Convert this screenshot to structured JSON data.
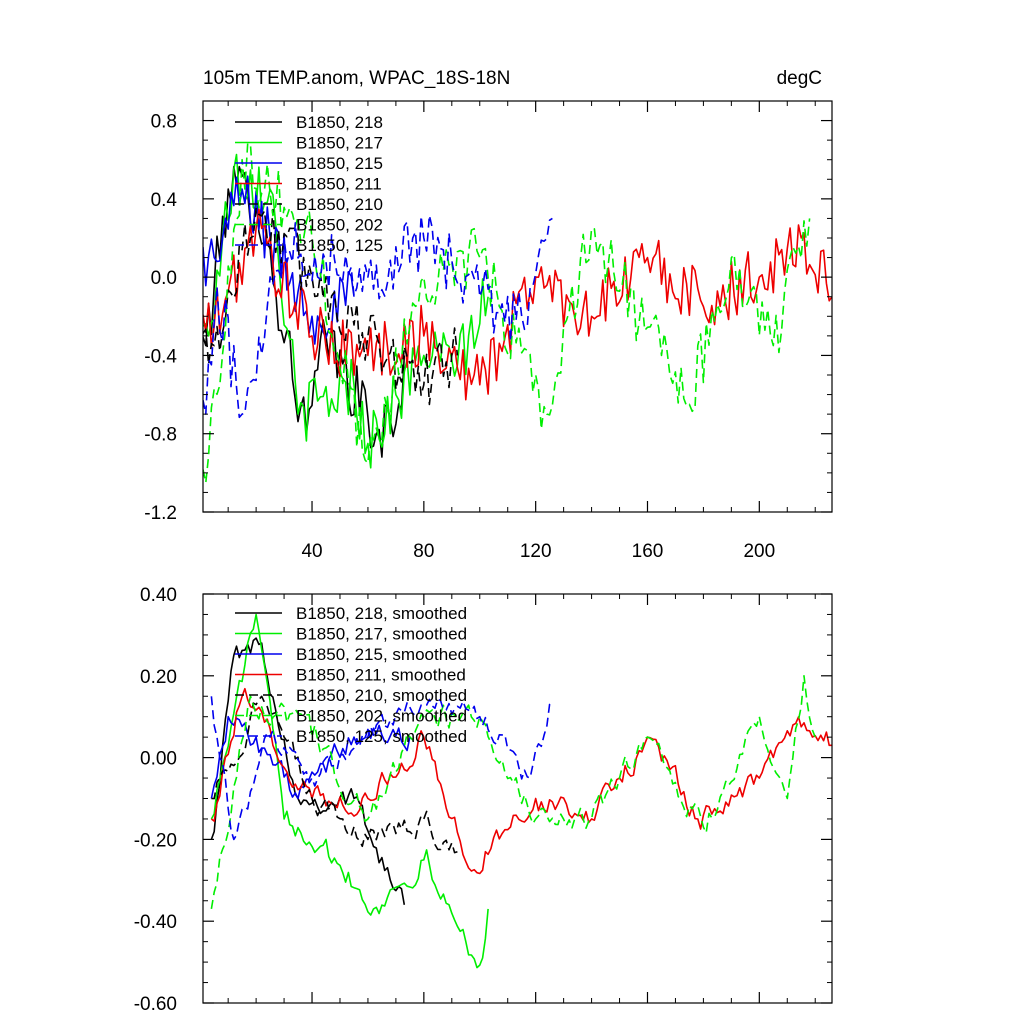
{
  "title_left": "105m TEMP.anom, WPAC_18S-18N",
  "title_right": "degC",
  "chart_data": [
    {
      "type": "line",
      "panel": "top",
      "xlim": [
        1,
        226
      ],
      "ylim": [
        -1.2,
        0.9
      ],
      "xticks": [
        40,
        80,
        120,
        160,
        200
      ],
      "yticks": [
        -1.2,
        -0.8,
        -0.4,
        0.0,
        0.4,
        0.8
      ],
      "ytick_labels": [
        "-1.2",
        "-0.8",
        "-0.4",
        "0.0",
        "0.4",
        "0.8"
      ],
      "legend_position": "top-left",
      "series": [
        {
          "name": "B1850, 218",
          "color": "#000000",
          "dash": "solid",
          "x_start": 1,
          "x_end": 73,
          "peaks": [
            [
              2,
              -0.35
            ],
            [
              10,
              0.45
            ],
            [
              20,
              0.4
            ],
            [
              38,
              -0.8
            ],
            [
              45,
              -0.3
            ],
            [
              63,
              -0.8
            ],
            [
              70,
              -0.75
            ],
            [
              73,
              -0.4
            ]
          ]
        },
        {
          "name": "B1850, 217",
          "color": "#00ee00",
          "dash": "solid",
          "x_start": 1,
          "x_end": 103,
          "peaks": [
            [
              3,
              -0.3
            ],
            [
              12,
              0.55
            ],
            [
              25,
              0.45
            ],
            [
              35,
              -0.7
            ],
            [
              55,
              -0.55
            ],
            [
              60,
              -0.85
            ],
            [
              80,
              -0.4
            ],
            [
              92,
              -0.45
            ],
            [
              103,
              -0.1
            ]
          ]
        },
        {
          "name": "B1850, 215",
          "color": "#0000ee",
          "dash": "solid",
          "x_start": 1,
          "x_end": 55,
          "peaks": [
            [
              5,
              0.1
            ],
            [
              15,
              0.45
            ],
            [
              25,
              0.2
            ],
            [
              40,
              -0.2
            ],
            [
              55,
              -0.1
            ]
          ]
        },
        {
          "name": "B1850, 211",
          "color": "#ee0000",
          "dash": "solid",
          "x_start": 1,
          "x_end": 226,
          "peaks": [
            [
              5,
              -0.25
            ],
            [
              20,
              0.25
            ],
            [
              40,
              -0.3
            ],
            [
              60,
              -0.4
            ],
            [
              80,
              -0.3
            ],
            [
              100,
              -0.55
            ],
            [
              120,
              0.0
            ],
            [
              140,
              -0.2
            ],
            [
              160,
              0.1
            ],
            [
              180,
              -0.15
            ],
            [
              200,
              0.0
            ],
            [
              215,
              0.2
            ],
            [
              226,
              -0.1
            ]
          ]
        },
        {
          "name": "B1850, 210",
          "color": "#000000",
          "dash": "dashed",
          "x_start": 1,
          "x_end": 92,
          "peaks": [
            [
              5,
              -0.35
            ],
            [
              20,
              0.35
            ],
            [
              40,
              0.0
            ],
            [
              60,
              -0.3
            ],
            [
              80,
              -0.55
            ],
            [
              92,
              -0.4
            ]
          ]
        },
        {
          "name": "B1850, 202",
          "color": "#00ee00",
          "dash": "dashed",
          "x_start": 1,
          "x_end": 218,
          "peaks": [
            [
              2,
              -1.05
            ],
            [
              15,
              0.6
            ],
            [
              40,
              0.2
            ],
            [
              60,
              -0.95
            ],
            [
              80,
              0.0
            ],
            [
              100,
              0.1
            ],
            [
              124,
              -0.7
            ],
            [
              140,
              0.25
            ],
            [
              165,
              -0.4
            ],
            [
              175,
              -0.65
            ],
            [
              190,
              0.1
            ],
            [
              205,
              -0.35
            ],
            [
              218,
              0.3
            ]
          ]
        },
        {
          "name": "B1850, 125",
          "color": "#0000ee",
          "dash": "dashed",
          "x_start": 1,
          "x_end": 126,
          "peaks": [
            [
              2,
              -0.7
            ],
            [
              6,
              -0.05
            ],
            [
              15,
              -0.7
            ],
            [
              30,
              0.2
            ],
            [
              60,
              0.0
            ],
            [
              80,
              0.2
            ],
            [
              100,
              -0.1
            ],
            [
              115,
              -0.2
            ],
            [
              126,
              0.3
            ]
          ]
        }
      ]
    },
    {
      "type": "line",
      "panel": "bottom",
      "xlim": [
        1,
        226
      ],
      "ylim": [
        -0.6,
        0.4
      ],
      "xticks": [
        40,
        80,
        120,
        160,
        200
      ],
      "yticks": [
        -0.6,
        -0.4,
        -0.2,
        0.0,
        0.2,
        0.4
      ],
      "ytick_labels": [
        "-0.60",
        "-0.40",
        "-0.20",
        "0.00",
        "0.20",
        "0.40"
      ],
      "legend_position": "top-left",
      "series": [
        {
          "name": "B1850, 218, smoothed",
          "color": "#000000",
          "dash": "solid",
          "x_start": 4,
          "x_end": 73,
          "peaks": [
            [
              4,
              -0.2
            ],
            [
              12,
              0.25
            ],
            [
              22,
              0.28
            ],
            [
              35,
              -0.1
            ],
            [
              55,
              -0.1
            ],
            [
              68,
              -0.3
            ],
            [
              73,
              -0.36
            ]
          ]
        },
        {
          "name": "B1850, 217, smoothed",
          "color": "#00ee00",
          "dash": "solid",
          "x_start": 4,
          "x_end": 103,
          "peaks": [
            [
              4,
              -0.15
            ],
            [
              20,
              0.35
            ],
            [
              30,
              -0.15
            ],
            [
              45,
              -0.2
            ],
            [
              62,
              -0.37
            ],
            [
              80,
              -0.25
            ],
            [
              95,
              -0.45
            ],
            [
              101,
              -0.49
            ],
            [
              103,
              -0.37
            ]
          ]
        },
        {
          "name": "B1850, 215, smoothed",
          "color": "#0000ee",
          "dash": "solid",
          "x_start": 4,
          "x_end": 75,
          "peaks": [
            [
              4,
              -0.1
            ],
            [
              10,
              0.1
            ],
            [
              20,
              0.05
            ],
            [
              35,
              -0.1
            ],
            [
              55,
              0.05
            ],
            [
              75,
              0.05
            ]
          ]
        },
        {
          "name": "B1850, 211, smoothed",
          "color": "#ee0000",
          "dash": "solid",
          "x_start": 4,
          "x_end": 226,
          "peaks": [
            [
              4,
              -0.15
            ],
            [
              15,
              0.15
            ],
            [
              40,
              -0.1
            ],
            [
              60,
              -0.1
            ],
            [
              80,
              0.05
            ],
            [
              96,
              -0.27
            ],
            [
              120,
              -0.1
            ],
            [
              140,
              -0.15
            ],
            [
              160,
              0.05
            ],
            [
              178,
              -0.15
            ],
            [
              200,
              -0.05
            ],
            [
              212,
              0.08
            ],
            [
              226,
              0.03
            ]
          ]
        },
        {
          "name": "B1850, 210, smoothed",
          "color": "#000000",
          "dash": "dashed",
          "x_start": 4,
          "x_end": 92,
          "peaks": [
            [
              4,
              -0.1
            ],
            [
              22,
              0.15
            ],
            [
              40,
              -0.1
            ],
            [
              60,
              -0.2
            ],
            [
              80,
              -0.15
            ],
            [
              92,
              -0.23
            ]
          ]
        },
        {
          "name": "B1850, 202, smoothed",
          "color": "#00ee00",
          "dash": "dashed",
          "x_start": 4,
          "x_end": 220,
          "peaks": [
            [
              4,
              -0.37
            ],
            [
              18,
              0.15
            ],
            [
              40,
              0.05
            ],
            [
              60,
              -0.15
            ],
            [
              80,
              0.1
            ],
            [
              100,
              0.1
            ],
            [
              120,
              -0.15
            ],
            [
              140,
              -0.15
            ],
            [
              160,
              0.05
            ],
            [
              180,
              -0.17
            ],
            [
              200,
              0.1
            ],
            [
              210,
              -0.1
            ],
            [
              216,
              0.2
            ],
            [
              220,
              0.05
            ]
          ]
        },
        {
          "name": "B1850, 125, smoothed",
          "color": "#0000ee",
          "dash": "dashed",
          "x_start": 4,
          "x_end": 126,
          "peaks": [
            [
              4,
              0.15
            ],
            [
              12,
              -0.2
            ],
            [
              25,
              0.05
            ],
            [
              40,
              -0.05
            ],
            [
              60,
              0.05
            ],
            [
              80,
              0.13
            ],
            [
              100,
              0.1
            ],
            [
              118,
              -0.05
            ],
            [
              126,
              0.14
            ]
          ]
        }
      ]
    }
  ]
}
